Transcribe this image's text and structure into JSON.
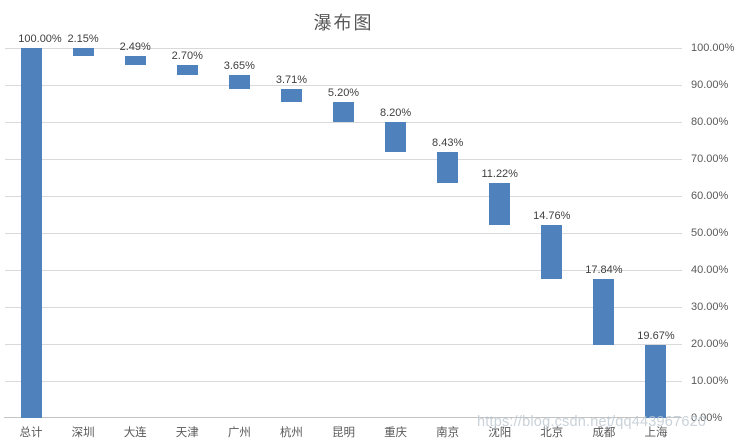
{
  "chart_data": {
    "type": "bar",
    "subtype": "waterfall",
    "title": "瀑布图",
    "categories": [
      "总计",
      "深圳",
      "大连",
      "天津",
      "广州",
      "杭州",
      "昆明",
      "重庆",
      "南京",
      "沈阳",
      "北京",
      "成都",
      "上海"
    ],
    "values": [
      100.0,
      2.15,
      2.49,
      2.7,
      3.65,
      3.71,
      5.2,
      8.2,
      8.43,
      11.22,
      14.76,
      17.84,
      19.67
    ],
    "value_labels": [
      "100.00%",
      "2.15%",
      "2.49%",
      "2.70%",
      "3.65%",
      "3.71%",
      "5.20%",
      "8.20%",
      "8.43%",
      "11.22%",
      "14.76%",
      "17.84%",
      "19.67%"
    ],
    "waterfall_start": 100,
    "y_axis": {
      "side": "right",
      "min": 0,
      "max": 100,
      "step": 10,
      "tick_labels": [
        "100.00%",
        "90.00%",
        "80.00%",
        "70.00%",
        "60.00%",
        "50.00%",
        "40.00%",
        "30.00%",
        "20.00%",
        "10.00%",
        "0.00%"
      ]
    },
    "grid": true,
    "legend": "none",
    "colors": {
      "bar": "#4F81BD",
      "gridline": "#D9D9D9",
      "axis_line": "#C3C3C3",
      "axis_text": "#595959",
      "data_label_text": "#404040",
      "title_text": "#595959"
    }
  },
  "watermark": {
    "text": "https://blog.csdn.net/qq443967620"
  }
}
